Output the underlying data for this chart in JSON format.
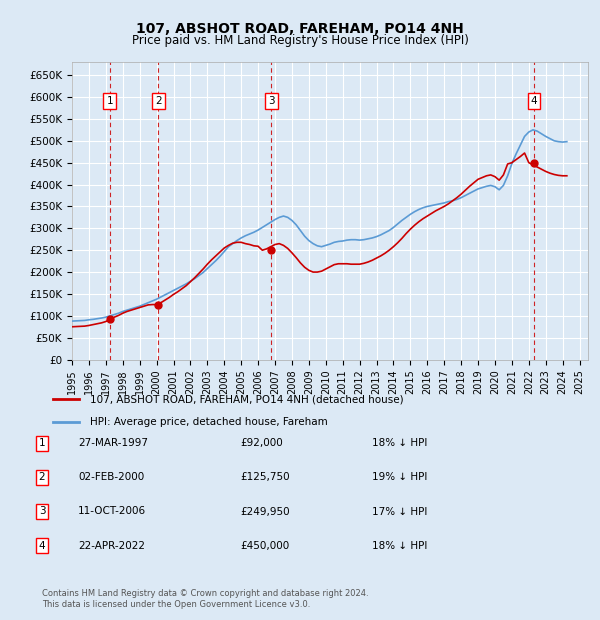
{
  "title": "107, ABSHOT ROAD, FAREHAM, PO14 4NH",
  "subtitle": "Price paid vs. HM Land Registry's House Price Index (HPI)",
  "ylabel": "",
  "background_color": "#dce9f5",
  "plot_bg_color": "#dce9f5",
  "grid_color": "#ffffff",
  "ylim": [
    0,
    680000
  ],
  "yticks": [
    0,
    50000,
    100000,
    150000,
    200000,
    250000,
    300000,
    350000,
    400000,
    450000,
    500000,
    550000,
    600000,
    650000
  ],
  "ytick_labels": [
    "£0",
    "£50K",
    "£100K",
    "£150K",
    "£200K",
    "£250K",
    "£300K",
    "£350K",
    "£400K",
    "£450K",
    "£500K",
    "£550K",
    "£600K",
    "£650K"
  ],
  "xlim_start": 1995.0,
  "xlim_end": 2025.5,
  "xtick_years": [
    1995,
    1996,
    1997,
    1998,
    1999,
    2000,
    2001,
    2002,
    2003,
    2004,
    2005,
    2006,
    2007,
    2008,
    2009,
    2010,
    2011,
    2012,
    2013,
    2014,
    2015,
    2016,
    2017,
    2018,
    2019,
    2020,
    2021,
    2022,
    2023,
    2024,
    2025
  ],
  "sale_dates": [
    1997.23,
    2000.09,
    2006.78,
    2022.31
  ],
  "sale_prices": [
    92000,
    125750,
    249950,
    450000
  ],
  "sale_labels": [
    "1",
    "2",
    "3",
    "4"
  ],
  "sale_label_dates": [
    1997.23,
    2000.09,
    2006.78,
    2022.31
  ],
  "sale_label_prices": [
    92000,
    125750,
    249950,
    450000
  ],
  "red_line_color": "#cc0000",
  "blue_line_color": "#5b9bd5",
  "vline_color": "#cc0000",
  "legend_red_label": "107, ABSHOT ROAD, FAREHAM, PO14 4NH (detached house)",
  "legend_blue_label": "HPI: Average price, detached house, Fareham",
  "table_entries": [
    {
      "num": "1",
      "date": "27-MAR-1997",
      "price": "£92,000",
      "pct": "18% ↓ HPI"
    },
    {
      "num": "2",
      "date": "02-FEB-2000",
      "price": "£125,750",
      "pct": "19% ↓ HPI"
    },
    {
      "num": "3",
      "date": "11-OCT-2006",
      "price": "£249,950",
      "pct": "17% ↓ HPI"
    },
    {
      "num": "4",
      "date": "22-APR-2022",
      "price": "£450,000",
      "pct": "18% ↓ HPI"
    }
  ],
  "footer": "Contains HM Land Registry data © Crown copyright and database right 2024.\nThis data is licensed under the Open Government Licence v3.0.",
  "hpi_years": [
    1995,
    1995.25,
    1995.5,
    1995.75,
    1996,
    1996.25,
    1996.5,
    1996.75,
    1997,
    1997.25,
    1997.5,
    1997.75,
    1998,
    1998.25,
    1998.5,
    1998.75,
    1999,
    1999.25,
    1999.5,
    1999.75,
    2000,
    2000.25,
    2000.5,
    2000.75,
    2001,
    2001.25,
    2001.5,
    2001.75,
    2002,
    2002.25,
    2002.5,
    2002.75,
    2003,
    2003.25,
    2003.5,
    2003.75,
    2004,
    2004.25,
    2004.5,
    2004.75,
    2005,
    2005.25,
    2005.5,
    2005.75,
    2006,
    2006.25,
    2006.5,
    2006.75,
    2007,
    2007.25,
    2007.5,
    2007.75,
    2008,
    2008.25,
    2008.5,
    2008.75,
    2009,
    2009.25,
    2009.5,
    2009.75,
    2010,
    2010.25,
    2010.5,
    2010.75,
    2011,
    2011.25,
    2011.5,
    2011.75,
    2012,
    2012.25,
    2012.5,
    2012.75,
    2013,
    2013.25,
    2013.5,
    2013.75,
    2014,
    2014.25,
    2014.5,
    2014.75,
    2015,
    2015.25,
    2015.5,
    2015.75,
    2016,
    2016.25,
    2016.5,
    2016.75,
    2017,
    2017.25,
    2017.5,
    2017.75,
    2018,
    2018.25,
    2018.5,
    2018.75,
    2019,
    2019.25,
    2019.5,
    2019.75,
    2020,
    2020.25,
    2020.5,
    2020.75,
    2021,
    2021.25,
    2021.5,
    2021.75,
    2022,
    2022.25,
    2022.5,
    2022.75,
    2023,
    2023.25,
    2023.5,
    2023.75,
    2024,
    2024.25
  ],
  "hpi_values": [
    88000,
    88500,
    89000,
    89500,
    91000,
    92000,
    93500,
    95000,
    97000,
    100000,
    103000,
    106000,
    110000,
    113000,
    116000,
    119000,
    122000,
    126000,
    130000,
    134000,
    138000,
    143000,
    148000,
    153000,
    158000,
    163000,
    168000,
    173000,
    179000,
    185000,
    192000,
    199000,
    208000,
    217000,
    226000,
    236000,
    247000,
    258000,
    265000,
    272000,
    278000,
    283000,
    287000,
    291000,
    296000,
    302000,
    308000,
    314000,
    320000,
    325000,
    328000,
    325000,
    318000,
    308000,
    295000,
    282000,
    272000,
    265000,
    260000,
    258000,
    261000,
    264000,
    268000,
    270000,
    271000,
    273000,
    274000,
    274000,
    273000,
    274000,
    276000,
    278000,
    281000,
    285000,
    290000,
    295000,
    302000,
    310000,
    318000,
    325000,
    332000,
    338000,
    343000,
    347000,
    350000,
    352000,
    354000,
    356000,
    358000,
    361000,
    363000,
    366000,
    370000,
    375000,
    380000,
    385000,
    390000,
    393000,
    396000,
    398000,
    395000,
    388000,
    398000,
    420000,
    448000,
    470000,
    490000,
    510000,
    520000,
    525000,
    522000,
    516000,
    510000,
    505000,
    500000,
    498000,
    497000,
    498000
  ],
  "red_years": [
    1995,
    1995.25,
    1995.5,
    1995.75,
    1996,
    1996.25,
    1996.5,
    1996.75,
    1997,
    1997.25,
    1997.5,
    1997.75,
    1998,
    1998.25,
    1998.5,
    1998.75,
    1999,
    1999.25,
    1999.5,
    1999.75,
    2000,
    2000.25,
    2000.5,
    2000.75,
    2001,
    2001.25,
    2001.5,
    2001.75,
    2002,
    2002.25,
    2002.5,
    2002.75,
    2003,
    2003.25,
    2003.5,
    2003.75,
    2004,
    2004.25,
    2004.5,
    2004.75,
    2005,
    2005.25,
    2005.5,
    2005.75,
    2006,
    2006.25,
    2006.5,
    2006.75,
    2007,
    2007.25,
    2007.5,
    2007.75,
    2008,
    2008.25,
    2008.5,
    2008.75,
    2009,
    2009.25,
    2009.5,
    2009.75,
    2010,
    2010.25,
    2010.5,
    2010.75,
    2011,
    2011.25,
    2011.5,
    2011.75,
    2012,
    2012.25,
    2012.5,
    2012.75,
    2013,
    2013.25,
    2013.5,
    2013.75,
    2014,
    2014.25,
    2014.5,
    2014.75,
    2015,
    2015.25,
    2015.5,
    2015.75,
    2016,
    2016.25,
    2016.5,
    2016.75,
    2017,
    2017.25,
    2017.5,
    2017.75,
    2018,
    2018.25,
    2018.5,
    2018.75,
    2019,
    2019.25,
    2019.5,
    2019.75,
    2020,
    2020.25,
    2020.5,
    2020.75,
    2021,
    2021.25,
    2021.5,
    2021.75,
    2022,
    2022.25,
    2022.5,
    2022.75,
    2023,
    2023.25,
    2023.5,
    2023.75,
    2024,
    2024.25
  ],
  "red_values": [
    75000,
    75500,
    76000,
    76500,
    78000,
    80000,
    82000,
    84000,
    87000,
    92000,
    97000,
    101000,
    106000,
    110000,
    113000,
    116000,
    119000,
    122000,
    125000,
    125750,
    125750,
    130000,
    136000,
    142000,
    149000,
    155000,
    162000,
    169000,
    178000,
    187000,
    197000,
    207000,
    218000,
    228000,
    237000,
    246000,
    255000,
    261000,
    266000,
    268000,
    268000,
    265000,
    263000,
    260000,
    259000,
    249950,
    253000,
    258000,
    263000,
    265000,
    261000,
    254000,
    244000,
    233000,
    221000,
    211000,
    204000,
    200000,
    200000,
    202000,
    207000,
    212000,
    217000,
    219000,
    219000,
    219000,
    218000,
    218000,
    218000,
    220000,
    223000,
    227000,
    232000,
    237000,
    243000,
    250000,
    258000,
    267000,
    277000,
    288000,
    298000,
    307000,
    315000,
    322000,
    328000,
    334000,
    340000,
    345000,
    350000,
    356000,
    363000,
    370000,
    378000,
    387000,
    396000,
    404000,
    412000,
    416000,
    420000,
    422000,
    418000,
    410000,
    422000,
    447000,
    450000,
    457000,
    464000,
    472000,
    450000,
    445000,
    440000,
    435000,
    430000,
    426000,
    423000,
    421000,
    420000,
    420000
  ]
}
